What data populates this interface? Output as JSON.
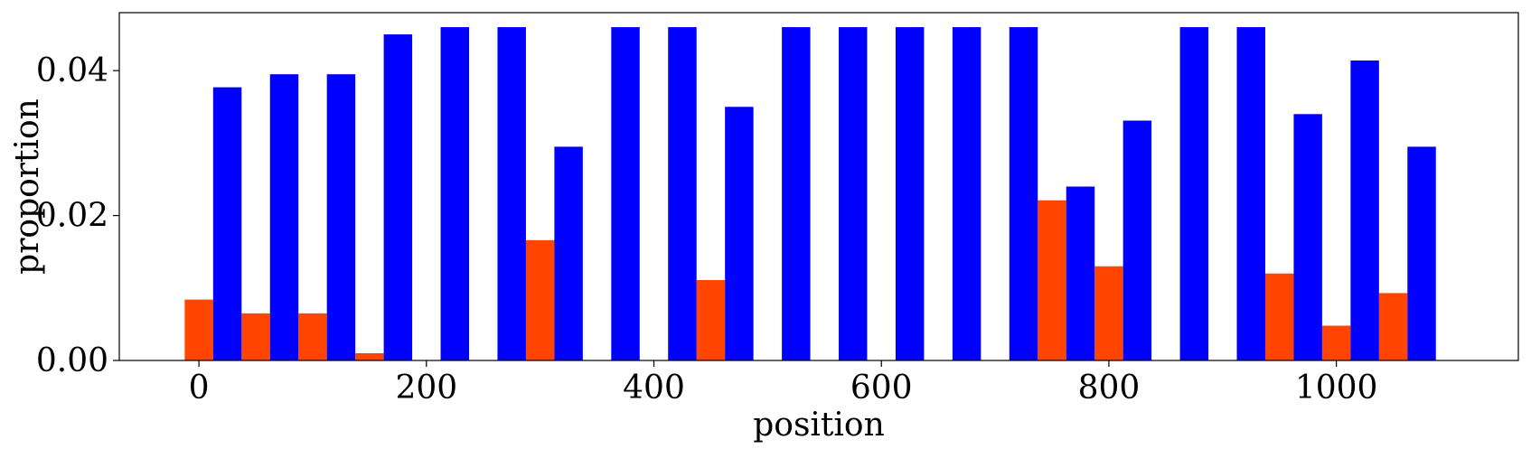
{
  "chart_data": {
    "type": "bar",
    "xlabel": "position",
    "ylabel": "proportion",
    "xlim": [
      -70,
      1160
    ],
    "ylim": [
      0,
      0.048
    ],
    "x_ticks": [
      0,
      200,
      400,
      600,
      800,
      1000
    ],
    "x_tick_labels": [
      "0",
      "200",
      "400",
      "600",
      "800",
      "1000"
    ],
    "y_ticks": [
      0.0,
      0.02,
      0.04
    ],
    "y_tick_labels": [
      "0.00",
      "0.02",
      "0.04"
    ],
    "grid": false,
    "bar_width": 25,
    "series": [
      {
        "color": "#ff4500",
        "x": [
          0,
          50,
          100,
          150,
          200,
          250,
          300,
          350,
          400,
          450,
          500,
          550,
          600,
          650,
          700,
          750,
          800,
          850,
          900,
          950,
          1000,
          1050
        ],
        "values": [
          0.0084,
          0.0065,
          0.0065,
          0.001,
          0,
          0,
          0.0166,
          0,
          0,
          0.0111,
          0,
          0,
          0,
          0,
          0,
          0.0221,
          0.013,
          0,
          0,
          0.012,
          0.0048,
          0.0093
        ]
      },
      {
        "color": "#0000ff",
        "x": [
          25,
          75,
          125,
          175,
          225,
          275,
          325,
          375,
          425,
          475,
          525,
          575,
          625,
          675,
          725,
          775,
          825,
          875,
          925,
          975,
          1025,
          1075
        ],
        "values": [
          0.0377,
          0.0395,
          0.0395,
          0.045,
          0.046,
          0.046,
          0.0295,
          0.046,
          0.046,
          0.035,
          0.046,
          0.046,
          0.046,
          0.046,
          0.046,
          0.024,
          0.0331,
          0.046,
          0.046,
          0.034,
          0.0414,
          0.0295
        ]
      }
    ]
  }
}
